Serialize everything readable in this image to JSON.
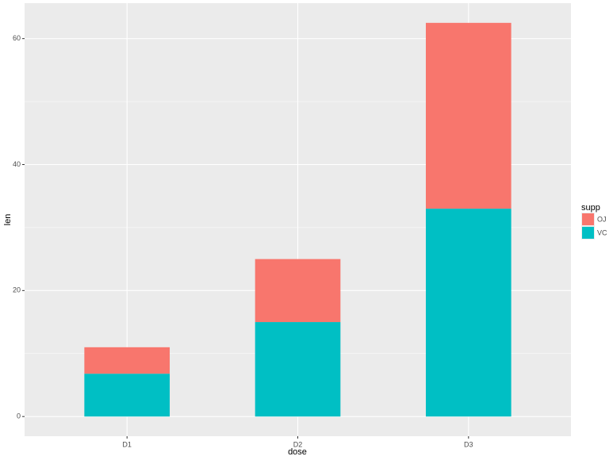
{
  "chart_data": {
    "type": "stacked-bar",
    "x_label": "dose",
    "y_label": "len",
    "categories": [
      "D1",
      "D2",
      "D3"
    ],
    "series": [
      {
        "name": "OJ",
        "color": "#f8766d",
        "values": [
          4.2,
          10,
          29.5
        ]
      },
      {
        "name": "VC",
        "color": "#00bfc4",
        "values": [
          6.8,
          15,
          33
        ]
      }
    ],
    "stack_order": [
      "VC",
      "OJ"
    ],
    "legend_title": "supp",
    "legend_position": "right",
    "ylim": [
      -3.125,
      65.625
    ],
    "yticks": [
      0,
      20,
      40,
      60
    ],
    "grid": true
  }
}
